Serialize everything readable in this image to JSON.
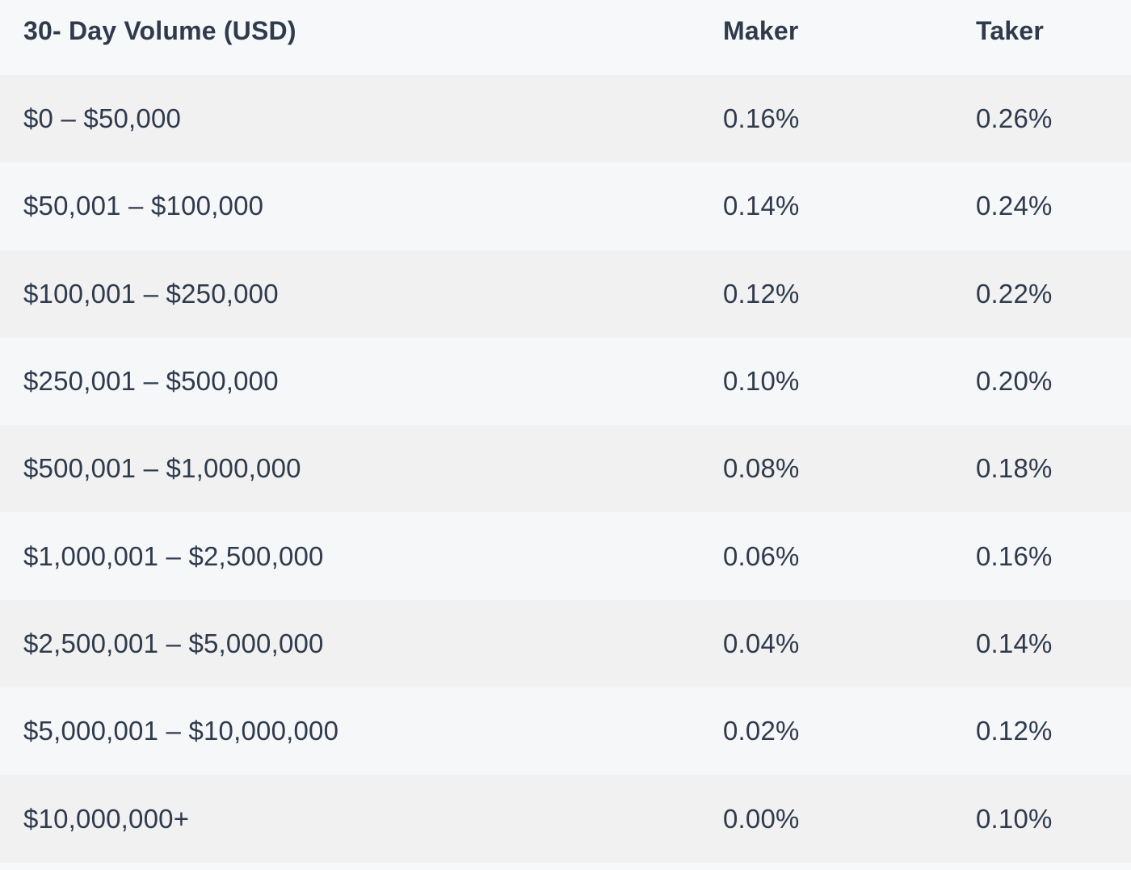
{
  "table": {
    "headers": {
      "volume": "30- Day Volume (USD)",
      "maker": "Maker",
      "taker": "Taker"
    },
    "rows": [
      {
        "volume": "$0 – $50,000",
        "maker": "0.16%",
        "taker": "0.26%"
      },
      {
        "volume": "$50,001 – $100,000",
        "maker": "0.14%",
        "taker": "0.24%"
      },
      {
        "volume": "$100,001 – $250,000",
        "maker": "0.12%",
        "taker": "0.22%"
      },
      {
        "volume": "$250,001 – $500,000",
        "maker": "0.10%",
        "taker": "0.20%"
      },
      {
        "volume": "$500,001 – $1,000,000",
        "maker": "0.08%",
        "taker": "0.18%"
      },
      {
        "volume": "$1,000,001 – $2,500,000",
        "maker": "0.06%",
        "taker": "0.16%"
      },
      {
        "volume": "$2,500,001 – $5,000,000",
        "maker": "0.04%",
        "taker": "0.14%"
      },
      {
        "volume": "$5,000,001 – $10,000,000",
        "maker": "0.02%",
        "taker": "0.12%"
      },
      {
        "volume": "$10,000,000+",
        "maker": "0.00%",
        "taker": "0.10%"
      }
    ]
  },
  "colors": {
    "text": "#2f3b4d",
    "row_shaded": "#f1f1f1",
    "row_light": "#f6f7f9"
  }
}
